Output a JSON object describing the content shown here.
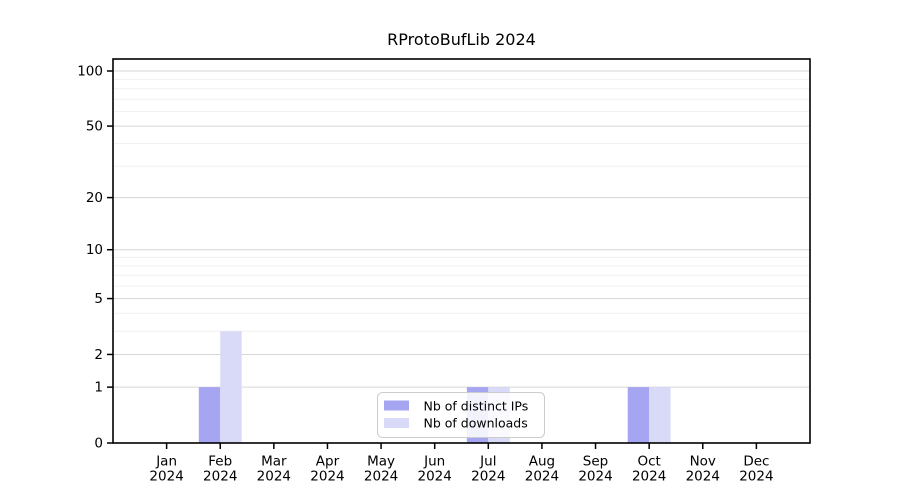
{
  "page": {
    "background": "#ffffff"
  },
  "chart_data": {
    "type": "bar",
    "title": "RProtoBufLib 2024",
    "categories": [
      "Jan 2024",
      "Feb 2024",
      "Mar 2024",
      "Apr 2024",
      "May 2024",
      "Jun 2024",
      "Jul 2024",
      "Aug 2024",
      "Sep 2024",
      "Oct 2024",
      "Nov 2024",
      "Dec 2024"
    ],
    "series": [
      {
        "name": "Nb of distinct IPs",
        "color": "#a5a5f2",
        "values": [
          0,
          1,
          0,
          0,
          0,
          0,
          1,
          0,
          0,
          1,
          0,
          0
        ]
      },
      {
        "name": "Nb of downloads",
        "color": "#d9d9f8",
        "values": [
          0,
          3,
          0,
          0,
          0,
          0,
          1,
          0,
          0,
          1,
          0,
          0
        ]
      }
    ],
    "xlabel": "",
    "ylabel": "",
    "y_axis": {
      "scale": "symlog",
      "major_ticks": [
        0,
        1,
        2,
        5,
        10,
        20,
        50,
        100
      ],
      "minor_ticks": [
        3,
        4,
        6,
        7,
        8,
        9,
        30,
        40,
        60,
        70,
        80,
        90
      ],
      "ylim": [
        0,
        115
      ]
    },
    "grid": true,
    "legend": {
      "position": "inside-bottom-center",
      "items": [
        {
          "label": "Nb of distinct IPs",
          "color": "#a5a5f2"
        },
        {
          "label": "Nb of downloads",
          "color": "#d9d9f8"
        }
      ]
    },
    "colors": {
      "grid_major": "#d6d6d6",
      "grid_minor": "#f0f0f0",
      "axis": "#000000",
      "legend_border": "#cccccc",
      "background": "#ffffff"
    }
  }
}
